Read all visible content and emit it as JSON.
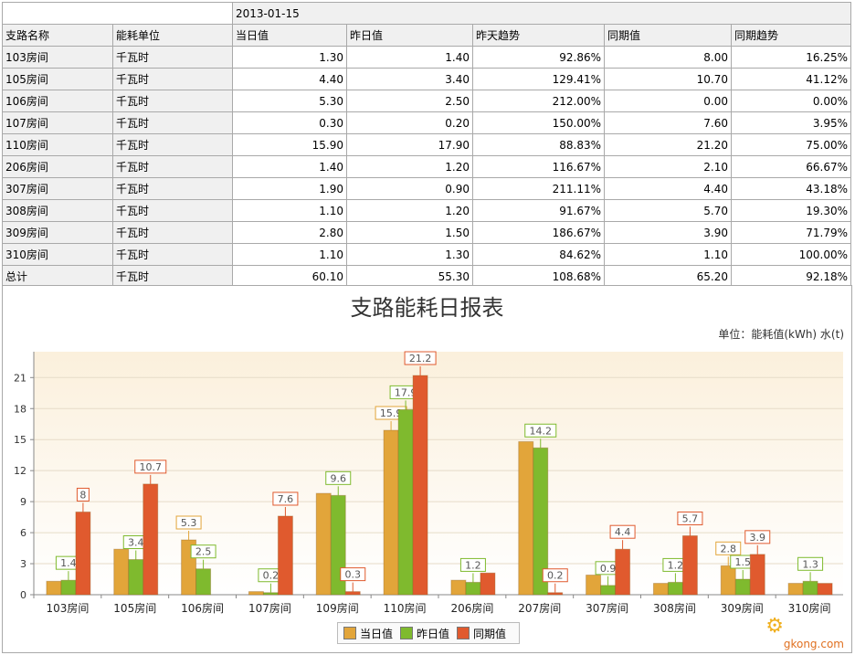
{
  "table": {
    "date": "2013-01-15",
    "headers": [
      "支路名称",
      "能耗单位",
      "当日值",
      "昨日值",
      "昨天趋势",
      "同期值",
      "同期趋势"
    ],
    "rows": [
      [
        "103房间",
        "千瓦时",
        "1.30",
        "1.40",
        "92.86%",
        "8.00",
        "16.25%"
      ],
      [
        "105房间",
        "千瓦时",
        "4.40",
        "3.40",
        "129.41%",
        "10.70",
        "41.12%"
      ],
      [
        "106房间",
        "千瓦时",
        "5.30",
        "2.50",
        "212.00%",
        "0.00",
        "0.00%"
      ],
      [
        "107房间",
        "千瓦时",
        "0.30",
        "0.20",
        "150.00%",
        "7.60",
        "3.95%"
      ],
      [
        "110房间",
        "千瓦时",
        "15.90",
        "17.90",
        "88.83%",
        "21.20",
        "75.00%"
      ],
      [
        "206房间",
        "千瓦时",
        "1.40",
        "1.20",
        "116.67%",
        "2.10",
        "66.67%"
      ],
      [
        "307房间",
        "千瓦时",
        "1.90",
        "0.90",
        "211.11%",
        "4.40",
        "43.18%"
      ],
      [
        "308房间",
        "千瓦时",
        "1.10",
        "1.20",
        "91.67%",
        "5.70",
        "19.30%"
      ],
      [
        "309房间",
        "千瓦时",
        "2.80",
        "1.50",
        "186.67%",
        "3.90",
        "71.79%"
      ],
      [
        "310房间",
        "千瓦时",
        "1.10",
        "1.30",
        "84.62%",
        "1.10",
        "100.00%"
      ],
      [
        "总计",
        "千瓦时",
        "60.10",
        "55.30",
        "108.68%",
        "65.20",
        "92.18%"
      ]
    ]
  },
  "chart_data": {
    "type": "bar",
    "title": "支路能耗日报表",
    "unit_note": "单位：能耗值(kWh) 水(t)",
    "categories": [
      "103房间",
      "105房间",
      "106房间",
      "107房间",
      "109房间",
      "110房间",
      "206房间",
      "207房间",
      "307房间",
      "308房间",
      "309房间",
      "310房间"
    ],
    "series": [
      {
        "name": "当日值",
        "values": [
          1.3,
          4.4,
          5.3,
          0.3,
          9.8,
          15.9,
          1.4,
          14.8,
          1.9,
          1.1,
          2.8,
          1.1
        ],
        "labels": [
          "",
          "",
          "5.3",
          "",
          "",
          "15.9",
          "",
          "",
          "",
          "",
          "2.8",
          ""
        ]
      },
      {
        "name": "昨日值",
        "values": [
          1.4,
          3.4,
          2.5,
          0.2,
          9.6,
          17.9,
          1.2,
          14.2,
          0.9,
          1.2,
          1.5,
          1.3
        ],
        "labels": [
          "1.4",
          "3.4",
          "2.5",
          "0.2",
          "9.6",
          "17.9",
          "1.2",
          "14.2",
          "0.9",
          "1.2",
          "1.5",
          "1.3"
        ]
      },
      {
        "name": "同期值",
        "values": [
          8,
          10.7,
          0,
          7.6,
          0.3,
          21.2,
          2.1,
          0.2,
          4.4,
          5.7,
          3.9,
          1.1
        ],
        "labels": [
          "8",
          "10.7",
          "",
          "7.6",
          "0.3",
          "21.2",
          "",
          "0.2",
          "4.4",
          "5.7",
          "3.9",
          ""
        ]
      }
    ],
    "yticks": [
      0,
      3,
      6,
      9,
      12,
      15,
      18,
      21
    ],
    "ylim": [
      0,
      23.5
    ],
    "grid": true,
    "legend_position": "bottom-center",
    "colors": {
      "当日值": "#e2a53a",
      "昨日值": "#7fba2e",
      "同期值": "#e05a2e"
    }
  },
  "watermark": "gkong.com"
}
